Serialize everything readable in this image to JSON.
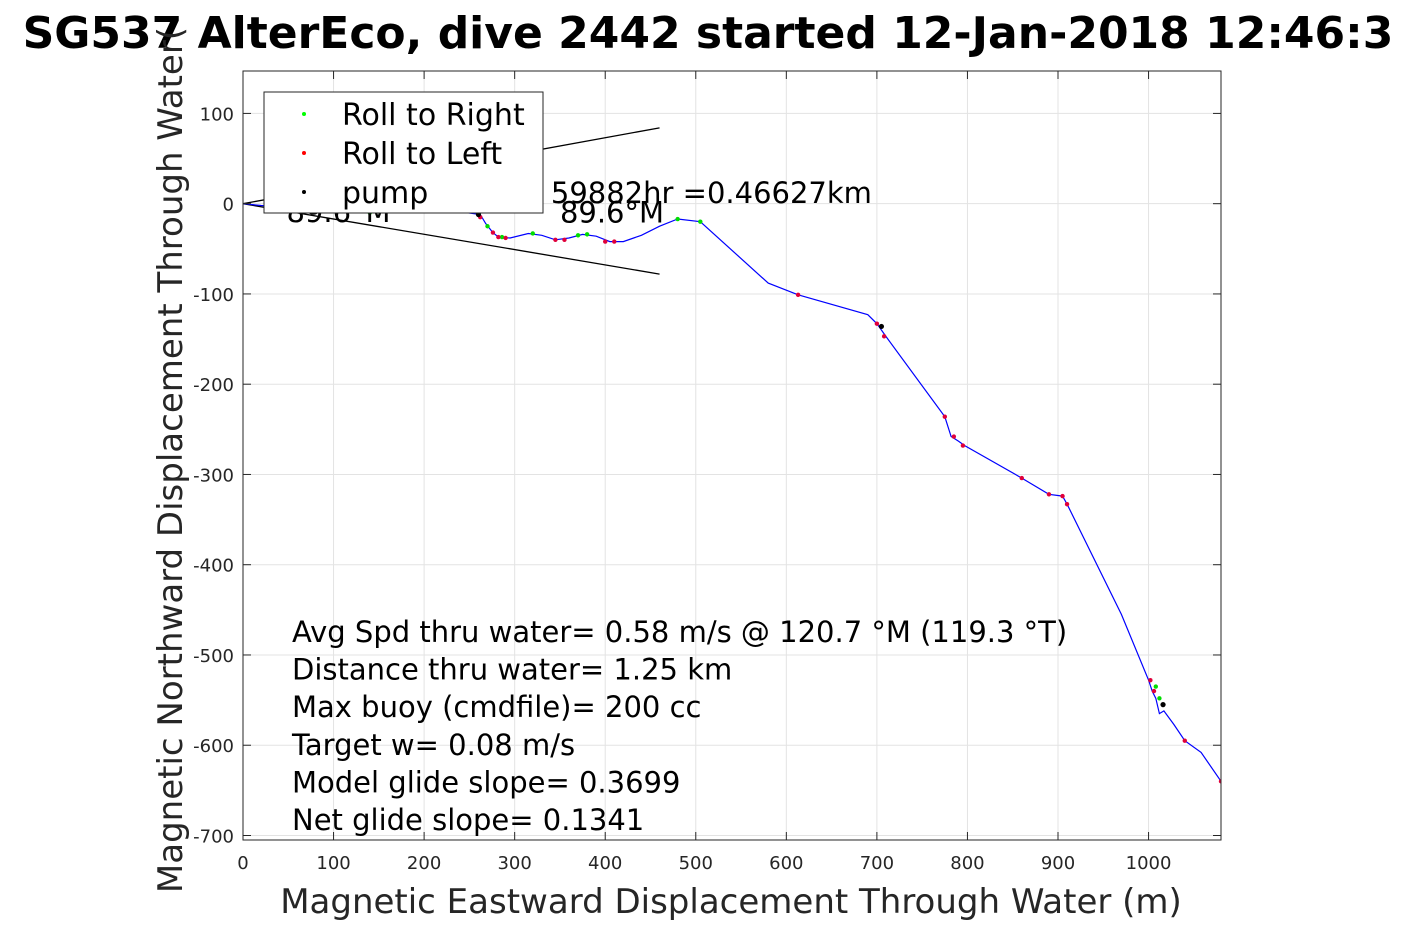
{
  "chart_data": {
    "type": "line",
    "title": "SG537 AlterEco, dive 2442 started 12-Jan-2018 12:46:3",
    "xlabel": "Magnetic Eastward Displacement Through Water (m)",
    "ylabel": "Magnetic Northward Displacement Through Water(",
    "xlim": [
      0,
      1080
    ],
    "ylim": [
      -705,
      147
    ],
    "x_ticks": [
      0,
      100,
      200,
      300,
      400,
      500,
      600,
      700,
      800,
      900,
      1000
    ],
    "y_ticks": [
      100,
      0,
      -100,
      -200,
      -300,
      -400,
      -500,
      -600,
      -700
    ],
    "grid": true,
    "legend": {
      "placement": "top-left",
      "entries": [
        {
          "label": "Roll to Right",
          "color": "#00ff00",
          "marker": "dot"
        },
        {
          "label": "Roll to Left",
          "color": "#ff0000",
          "marker": "dot"
        },
        {
          "label": "pump",
          "color": "#000000",
          "marker": "dot"
        }
      ]
    },
    "track": {
      "color": "#0000ff",
      "x": [
        0,
        20,
        60,
        100,
        140,
        180,
        220,
        240,
        262,
        268,
        276,
        282,
        295,
        315,
        330,
        345,
        360,
        375,
        390,
        405,
        420,
        440,
        460,
        480,
        505,
        580,
        613,
        690,
        700,
        710,
        775,
        782,
        790,
        797,
        860,
        890,
        905,
        910,
        970,
        1000,
        1004,
        1008,
        1012,
        1017,
        1028,
        1040,
        1058,
        1080
      ],
      "y": [
        0,
        -2,
        -5,
        -8,
        -10,
        -9,
        -8,
        -9,
        -12,
        -22,
        -32,
        -37,
        -38,
        -33,
        -35,
        -40,
        -38,
        -34,
        -36,
        -42,
        -42,
        -35,
        -25,
        -17,
        -20,
        -88,
        -101,
        -123,
        -133,
        -147,
        -236,
        -258,
        -263,
        -268,
        -304,
        -322,
        -324,
        -333,
        -455,
        -528,
        -540,
        -548,
        -565,
        -562,
        -577,
        -595,
        -608,
        -640
      ]
    },
    "events": {
      "roll_right": [
        [
          90,
          -7
        ],
        [
          140,
          -10
        ],
        [
          270,
          -25
        ],
        [
          286,
          -37
        ],
        [
          320,
          -33
        ],
        [
          370,
          -35
        ],
        [
          380,
          -34
        ],
        [
          480,
          -17
        ],
        [
          505,
          -20
        ],
        [
          1008,
          -535
        ],
        [
          1012,
          -548
        ]
      ],
      "roll_left": [
        [
          262,
          -15
        ],
        [
          276,
          -32
        ],
        [
          282,
          -37
        ],
        [
          290,
          -38
        ],
        [
          345,
          -40
        ],
        [
          355,
          -40
        ],
        [
          400,
          -42
        ],
        [
          410,
          -42
        ],
        [
          613,
          -101
        ],
        [
          700,
          -133
        ],
        [
          708,
          -147
        ],
        [
          775,
          -236
        ],
        [
          785,
          -258
        ],
        [
          795,
          -268
        ],
        [
          860,
          -304
        ],
        [
          890,
          -322
        ],
        [
          905,
          -324
        ],
        [
          910,
          -333
        ],
        [
          1002,
          -528
        ],
        [
          1006,
          -540
        ],
        [
          1040,
          -595
        ],
        [
          1080,
          -640
        ]
      ],
      "pump": [
        [
          260,
          -12
        ],
        [
          705,
          -136
        ],
        [
          1016,
          -555
        ]
      ]
    },
    "heading_wedge": {
      "apex": [
        0,
        0
      ],
      "upper_end": [
        460,
        84
      ],
      "lower_end": [
        460,
        -78
      ],
      "labels": [
        {
          "text": "89.6°M",
          "x": 48,
          "y": -9
        },
        {
          "text": "89.6°M",
          "x": 350,
          "y": -10
        },
        {
          "text": "59882hr =0.46627km",
          "x": 340,
          "y": 12
        }
      ]
    },
    "annotations": [
      "Avg Spd thru water=  0.58 m/s @ 120.7 °M (119.3 °T)",
      "Distance thru water=  1.25 km",
      "Max buoy (cmdfile)= 200 cc",
      "Target w= 0.08 m/s",
      "Model glide slope= 0.3699",
      "Net glide slope= 0.1341"
    ]
  }
}
